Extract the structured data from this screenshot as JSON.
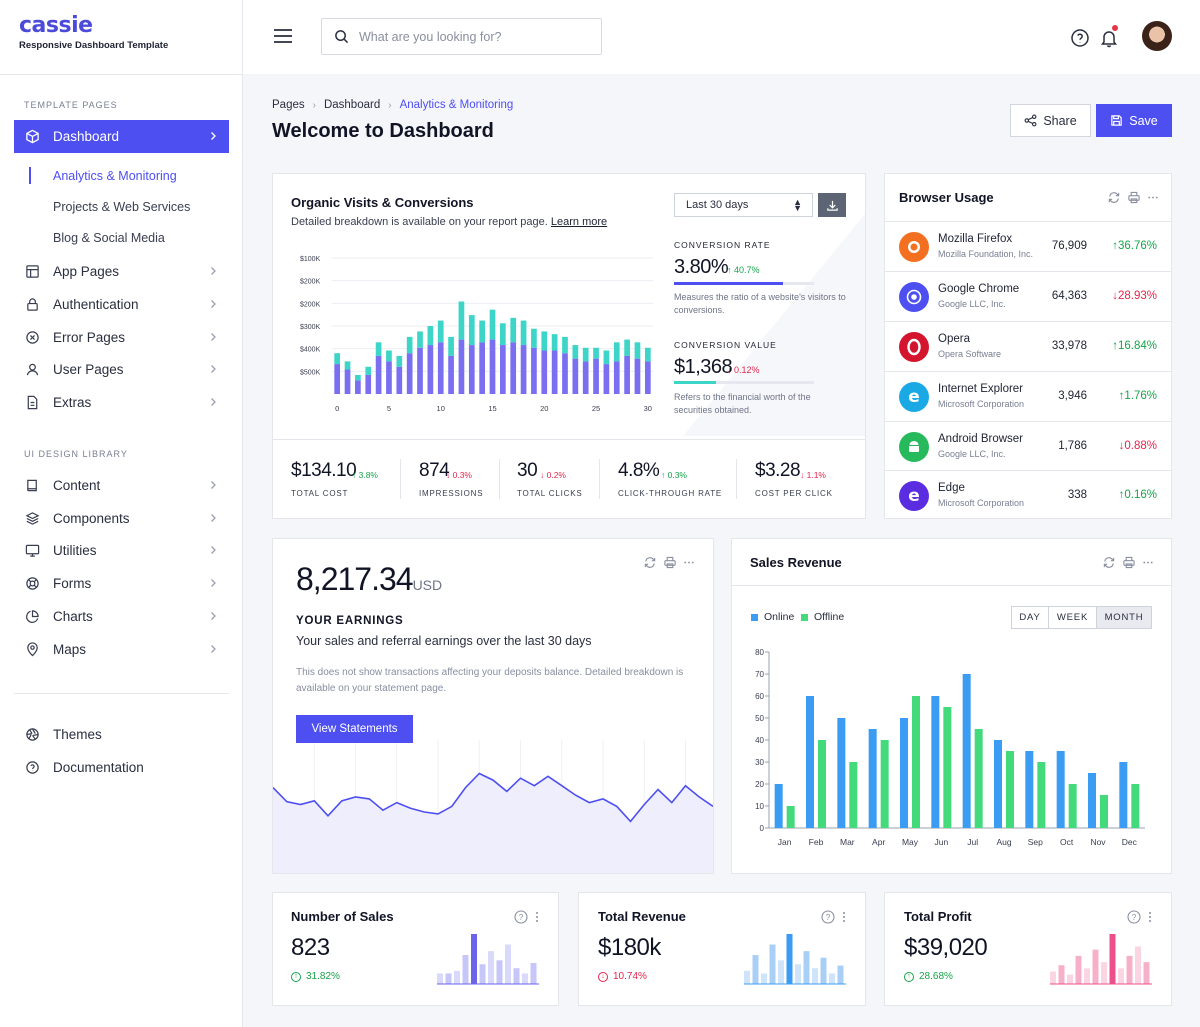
{
  "brand": {
    "name": "cassie",
    "tagline": "Responsive Dashboard Template"
  },
  "sidebar": {
    "section1": "TEMPLATE PAGES",
    "items": [
      {
        "label": "Dashboard",
        "icon": "cube-icon"
      },
      {
        "label": "App Pages",
        "icon": "layout-icon"
      },
      {
        "label": "Authentication",
        "icon": "lock-icon"
      },
      {
        "label": "Error Pages",
        "icon": "x-circle-icon"
      },
      {
        "label": "User Pages",
        "icon": "user-icon"
      },
      {
        "label": "Extras",
        "icon": "file-icon"
      }
    ],
    "sub_items": [
      "Analytics & Monitoring",
      "Projects & Web Services",
      "Blog & Social Media"
    ],
    "section2": "UI DESIGN LIBRARY",
    "items2": [
      {
        "label": "Content",
        "icon": "book-icon"
      },
      {
        "label": "Components",
        "icon": "layers-icon"
      },
      {
        "label": "Utilities",
        "icon": "monitor-icon"
      },
      {
        "label": "Forms",
        "icon": "life-buoy-icon"
      },
      {
        "label": "Charts",
        "icon": "pie-chart-icon"
      },
      {
        "label": "Maps",
        "icon": "map-pin-icon"
      }
    ],
    "footer_items": [
      {
        "label": "Themes",
        "icon": "aperture-icon"
      },
      {
        "label": "Documentation",
        "icon": "help-circle-icon"
      }
    ]
  },
  "topbar": {
    "search_placeholder": "What are you looking for?"
  },
  "breadcrumb": [
    "Pages",
    "Dashboard",
    "Analytics & Monitoring"
  ],
  "page_title": "Welcome to Dashboard",
  "actions": {
    "share": "Share",
    "save": "Save"
  },
  "organic": {
    "title": "Organic Visits & Conversions",
    "subtitle": "Detailed breakdown is available on your report page.",
    "link": "Learn more",
    "period": "Last 30 days",
    "conv_rate": {
      "label": "CONVERSION RATE",
      "value": "3.80%",
      "change": "↑ 40.7%",
      "progress": 0.78,
      "desc": "Measures the ratio of a website's visitors to conversions."
    },
    "conv_value": {
      "label": "CONVERSION VALUE",
      "value": "$1,368",
      "change": "↓ 0.12%",
      "progress": 0.3,
      "desc": "Refers to the financial worth of the securities obtained."
    },
    "kpis": [
      {
        "value": "$134.10",
        "change": "↑ 3.8%",
        "dir": "up",
        "label": "TOTAL COST"
      },
      {
        "value": "874",
        "change": "↓ 0.3%",
        "dir": "down",
        "label": "IMPRESSIONS"
      },
      {
        "value": "30",
        "change": "↓ 0.2%",
        "dir": "down",
        "label": "TOTAL CLICKS"
      },
      {
        "value": "4.8%",
        "change": "↑ 0.3%",
        "dir": "up",
        "label": "CLICK-THROUGH RATE"
      },
      {
        "value": "$3.28",
        "change": "↓ 1.1%",
        "dir": "down",
        "label": "COST PER CLICK"
      }
    ]
  },
  "browsers": {
    "title": "Browser Usage",
    "rows": [
      {
        "name": "Mozilla Firefox",
        "org": "Mozilla Foundation, Inc.",
        "value": "76,909",
        "change": "↑36.76%",
        "dir": "up",
        "color": "#f37021",
        "icon": "firefox-icon"
      },
      {
        "name": "Google Chrome",
        "org": "Google LLC, Inc.",
        "value": "64,363",
        "change": "↓28.93%",
        "dir": "down",
        "color": "#4e4ff0",
        "icon": "chrome-icon"
      },
      {
        "name": "Opera",
        "org": "Opera Software",
        "value": "33,978",
        "change": "↑16.84%",
        "dir": "up",
        "color": "#d3162d",
        "icon": "opera-icon"
      },
      {
        "name": "Internet Explorer",
        "org": "Microsoft Corporation",
        "value": "3,946",
        "change": "↑1.76%",
        "dir": "up",
        "color": "#1ba9e6",
        "icon": "ie-icon"
      },
      {
        "name": "Android Browser",
        "org": "Google LLC, Inc.",
        "value": "1,786",
        "change": "↓0.88%",
        "dir": "down",
        "color": "#27ba5c",
        "icon": "android-icon"
      },
      {
        "name": "Edge",
        "org": "Microsoft Corporation",
        "value": "338",
        "change": "↑0.16%",
        "dir": "up",
        "color": "#5b2de0",
        "icon": "edge-icon"
      }
    ]
  },
  "earnings": {
    "value": "8,217.34",
    "unit": "USD",
    "heading": "YOUR EARNINGS",
    "sub": "Your sales and referral earnings over the last 30 days",
    "note": "This does not show transactions affecting your deposits balance. Detailed breakdown is available on your statement page.",
    "button": "View Statements"
  },
  "sales": {
    "title": "Sales Revenue",
    "legend_online": "Online",
    "legend_offline": "Offline",
    "ranges": [
      "DAY",
      "WEEK",
      "MONTH"
    ],
    "active_range": "MONTH"
  },
  "minis": [
    {
      "title": "Number of Sales",
      "value": "823",
      "change": "31.82%",
      "dir": "up"
    },
    {
      "title": "Total Revenue",
      "value": "$180k",
      "change": "10.74%",
      "dir": "down"
    },
    {
      "title": "Total Profit",
      "value": "$39,020",
      "change": "28.68%",
      "dir": "up"
    }
  ],
  "chart_data": [
    {
      "type": "bar",
      "title": "Organic Visits & Conversions",
      "stacked": true,
      "x": [
        0,
        1,
        2,
        3,
        4,
        5,
        6,
        7,
        8,
        9,
        10,
        11,
        12,
        13,
        14,
        15,
        16,
        17,
        18,
        19,
        20,
        21,
        22,
        23,
        24,
        25,
        26,
        27,
        28,
        29,
        30
      ],
      "xticks": [
        0,
        5,
        10,
        15,
        20,
        25,
        30
      ],
      "yticks": [
        "$100K",
        "$200K",
        "$200K",
        "$300K",
        "$400K",
        "$500K"
      ],
      "ylim": [
        0,
        500
      ],
      "series": [
        {
          "values": [
            110,
            90,
            50,
            70,
            140,
            120,
            100,
            150,
            170,
            180,
            190,
            140,
            200,
            180,
            190,
            200,
            180,
            190,
            180,
            170,
            160,
            160,
            150,
            130,
            120,
            130,
            110,
            120,
            140,
            130,
            120
          ]
        },
        {
          "values": [
            40,
            30,
            20,
            30,
            50,
            40,
            40,
            60,
            60,
            70,
            80,
            70,
            140,
            110,
            80,
            110,
            80,
            90,
            90,
            70,
            70,
            60,
            60,
            50,
            50,
            40,
            50,
            70,
            60,
            60,
            50
          ]
        }
      ]
    },
    {
      "type": "area",
      "title": "",
      "x": [
        0,
        2,
        4,
        6,
        8,
        10,
        12,
        14,
        16,
        18,
        20,
        22,
        24,
        26,
        28,
        30,
        32,
        34,
        36,
        38,
        40,
        42,
        44,
        46,
        48,
        50,
        52,
        54,
        56,
        58,
        60,
        62,
        64
      ],
      "xticks": [
        6,
        12,
        18,
        24,
        30,
        36,
        42,
        48,
        54,
        60
      ],
      "values": [
        60,
        45,
        42,
        46,
        30,
        46,
        50,
        48,
        36,
        44,
        38,
        34,
        32,
        40,
        60,
        75,
        68,
        56,
        70,
        62,
        72,
        62,
        52,
        44,
        48,
        40,
        24,
        42,
        58,
        44,
        62,
        50,
        40
      ]
    },
    {
      "type": "bar",
      "title": "Sales Revenue",
      "categories": [
        "Jan",
        "Feb",
        "Mar",
        "Apr",
        "May",
        "Jun",
        "Jul",
        "Aug",
        "Sep",
        "Oct",
        "Nov",
        "Dec"
      ],
      "ylim": [
        0,
        80
      ],
      "yticks": [
        0,
        10,
        20,
        30,
        40,
        50,
        60,
        70,
        80
      ],
      "series": [
        {
          "name": "Online",
          "values": [
            20,
            60,
            50,
            45,
            50,
            60,
            70,
            40,
            35,
            35,
            25,
            30
          ]
        },
        {
          "name": "Offline",
          "values": [
            10,
            40,
            30,
            40,
            60,
            55,
            45,
            35,
            30,
            20,
            15,
            20
          ]
        }
      ]
    },
    {
      "type": "bar",
      "title": "Number of Sales",
      "values": [
        8,
        8,
        10,
        22,
        38,
        15,
        25,
        18,
        30,
        12,
        8,
        16
      ]
    },
    {
      "type": "bar",
      "title": "Total Revenue",
      "values": [
        10,
        22,
        8,
        30,
        18,
        38,
        15,
        25,
        12,
        20,
        8,
        14
      ]
    },
    {
      "type": "bar",
      "title": "Total Profit",
      "values": [
        8,
        12,
        6,
        18,
        10,
        22,
        14,
        32,
        10,
        18,
        24,
        14
      ]
    }
  ]
}
